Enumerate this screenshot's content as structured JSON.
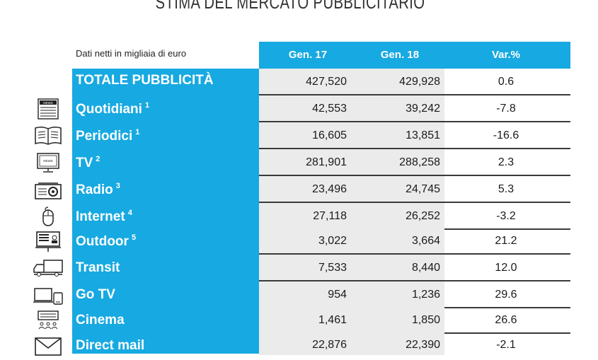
{
  "title": "STIMA DEL MERCATO PUBBLICITARIO",
  "caption": "Dati netti in migliaia di euro",
  "headers": [
    "Gen. 17",
    "Gen. 18",
    "Var.%"
  ],
  "rows": [
    {
      "label": "TOTALE PUBBLICITÀ",
      "note": "",
      "gen17": "427,520",
      "gen18": "429,928",
      "var": "0.6",
      "icon": "none"
    },
    {
      "label": "Quotidiani",
      "note": "1",
      "gen17": "42,553",
      "gen18": "39,242",
      "var": "-7.8",
      "icon": "newspaper-icon"
    },
    {
      "label": "Periodici",
      "note": "1",
      "gen17": "16,605",
      "gen18": "13,851",
      "var": "-16.6",
      "icon": "magazine-icon"
    },
    {
      "label": "TV",
      "note": "2",
      "gen17": "281,901",
      "gen18": "288,258",
      "var": "2.3",
      "icon": "tv-icon"
    },
    {
      "label": "Radio",
      "note": "3",
      "gen17": "23,496",
      "gen18": "24,745",
      "var": "5.3",
      "icon": "radio-icon"
    },
    {
      "label": "Internet",
      "note": "4",
      "gen17": "27,118",
      "gen18": "26,252",
      "var": "-3.2",
      "icon": "mouse-icon"
    },
    {
      "label": "Outdoor",
      "note": "5",
      "gen17": "3,022",
      "gen18": "3,664",
      "var": "21.2",
      "icon": "billboard-icon"
    },
    {
      "label": "Transit",
      "note": "",
      "gen17": "7,533",
      "gen18": "8,440",
      "var": "12.0",
      "icon": "truck-icon"
    },
    {
      "label": "Go TV",
      "note": "",
      "gen17": "954",
      "gen18": "1,236",
      "var": "29.6",
      "icon": "devices-icon"
    },
    {
      "label": "Cinema",
      "note": "",
      "gen17": "1,461",
      "gen18": "1,850",
      "var": "26.6",
      "icon": "cinema-icon"
    },
    {
      "label": "Direct mail",
      "note": "",
      "gen17": "22,876",
      "gen18": "22,390",
      "var": "-2.1",
      "icon": "envelope-icon"
    }
  ]
}
